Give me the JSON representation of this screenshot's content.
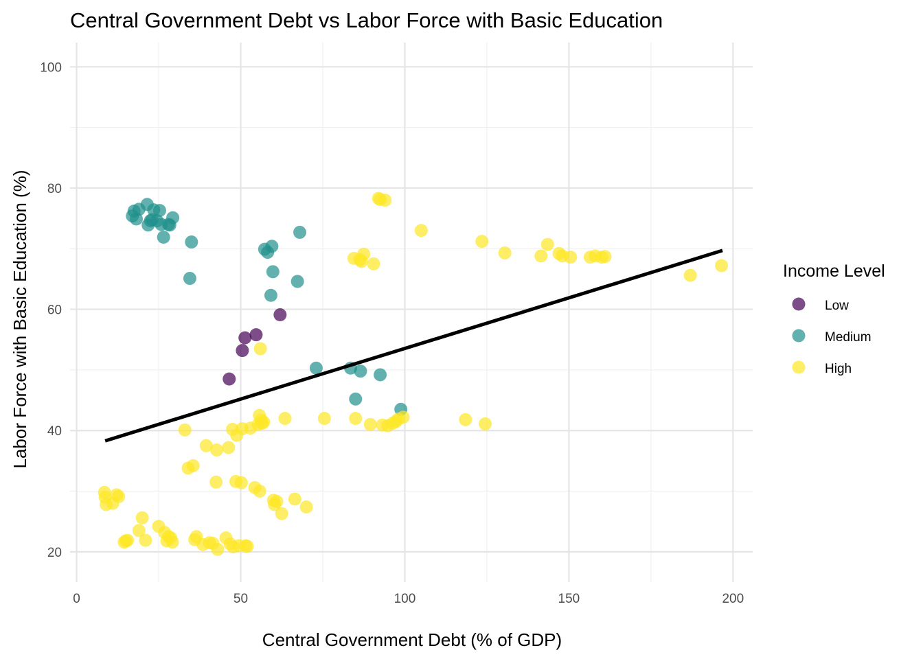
{
  "chart_data": {
    "type": "scatter",
    "title": "Central Government Debt vs Labor Force with Basic Education",
    "xlabel": "Central Government Debt (% of GDP)",
    "ylabel": "Labor Force with Basic Education (%)",
    "xlim": [
      -2,
      206
    ],
    "ylim": [
      15,
      104
    ],
    "x_ticks": [
      "0",
      "50",
      "100",
      "150",
      "200"
    ],
    "y_ticks": [
      "20",
      "40",
      "60",
      "80",
      "100"
    ],
    "grid": true,
    "legend": {
      "title": "Income Level",
      "position": "right",
      "entries": [
        {
          "label": "Low",
          "color": "#440154"
        },
        {
          "label": "Medium",
          "color": "#21908C"
        },
        {
          "label": "High",
          "color": "#FDE725"
        }
      ]
    },
    "series": [
      {
        "name": "Low",
        "color": "#440154",
        "points": [
          [
            46.5,
            48.5
          ],
          [
            50.5,
            53.2
          ],
          [
            51.3,
            55.3
          ],
          [
            54.7,
            55.8
          ],
          [
            62.0,
            59.1
          ]
        ]
      },
      {
        "name": "Medium",
        "color": "#21908C",
        "points": [
          [
            17.0,
            75.4
          ],
          [
            17.5,
            76.2
          ],
          [
            18.2,
            74.9
          ],
          [
            19.0,
            76.5
          ],
          [
            21.5,
            77.3
          ],
          [
            21.8,
            73.9
          ],
          [
            22.5,
            74.6
          ],
          [
            23.0,
            74.8
          ],
          [
            23.5,
            76.4
          ],
          [
            24.5,
            74.6
          ],
          [
            25.3,
            76.3
          ],
          [
            25.8,
            74.0
          ],
          [
            26.5,
            71.9
          ],
          [
            28.0,
            74.0
          ],
          [
            28.4,
            73.9
          ],
          [
            29.3,
            75.1
          ],
          [
            34.5,
            65.1
          ],
          [
            35.0,
            71.1
          ],
          [
            57.3,
            69.9
          ],
          [
            58.2,
            69.4
          ],
          [
            59.2,
            62.3
          ],
          [
            59.5,
            70.4
          ],
          [
            59.8,
            66.2
          ],
          [
            67.3,
            64.6
          ],
          [
            68.0,
            72.7
          ],
          [
            73.0,
            50.3
          ],
          [
            83.5,
            50.3
          ],
          [
            85.0,
            45.2
          ],
          [
            86.5,
            49.8
          ],
          [
            92.5,
            49.2
          ],
          [
            98.8,
            43.5
          ]
        ]
      },
      {
        "name": "High",
        "color": "#FDE725",
        "points": [
          [
            8.5,
            29.8
          ],
          [
            8.7,
            29.0
          ],
          [
            9.0,
            27.8
          ],
          [
            11.0,
            28.0
          ],
          [
            12.2,
            29.4
          ],
          [
            12.8,
            29.1
          ],
          [
            14.5,
            21.6
          ],
          [
            15.0,
            21.8
          ],
          [
            15.5,
            21.9
          ],
          [
            19.0,
            23.5
          ],
          [
            20.0,
            25.6
          ],
          [
            21.0,
            21.9
          ],
          [
            25.0,
            24.2
          ],
          [
            26.8,
            23.2
          ],
          [
            27.5,
            21.8
          ],
          [
            28.0,
            22.5
          ],
          [
            28.7,
            22.3
          ],
          [
            29.2,
            21.6
          ],
          [
            33.0,
            40.1
          ],
          [
            34.0,
            33.8
          ],
          [
            35.5,
            34.2
          ],
          [
            36.0,
            22.0
          ],
          [
            36.5,
            22.5
          ],
          [
            38.5,
            21.2
          ],
          [
            39.5,
            37.5
          ],
          [
            40.5,
            21.5
          ],
          [
            41.5,
            21.4
          ],
          [
            42.5,
            31.5
          ],
          [
            42.7,
            36.8
          ],
          [
            43.0,
            20.4
          ],
          [
            45.5,
            22.3
          ],
          [
            46.3,
            37.2
          ],
          [
            46.8,
            21.3
          ],
          [
            47.5,
            40.2
          ],
          [
            47.7,
            20.8
          ],
          [
            48.5,
            31.6
          ],
          [
            48.8,
            39.2
          ],
          [
            49.5,
            21.0
          ],
          [
            50.2,
            31.4
          ],
          [
            50.5,
            40.3
          ],
          [
            51.5,
            21.0
          ],
          [
            52.0,
            20.9
          ],
          [
            53.0,
            40.4
          ],
          [
            54.3,
            30.6
          ],
          [
            55.3,
            41.0
          ],
          [
            55.7,
            42.5
          ],
          [
            55.8,
            30.0
          ],
          [
            56.0,
            53.5
          ],
          [
            56.2,
            41.7
          ],
          [
            56.5,
            41.2
          ],
          [
            57.0,
            41.4
          ],
          [
            60.0,
            28.5
          ],
          [
            60.3,
            27.8
          ],
          [
            61.0,
            28.3
          ],
          [
            62.5,
            26.3
          ],
          [
            63.5,
            42.0
          ],
          [
            66.5,
            28.7
          ],
          [
            70.0,
            27.4
          ],
          [
            75.5,
            42.0
          ],
          [
            84.5,
            68.4
          ],
          [
            85.0,
            42.0
          ],
          [
            86.3,
            68.2
          ],
          [
            86.8,
            67.9
          ],
          [
            87.5,
            69.1
          ],
          [
            89.5,
            41.0
          ],
          [
            90.5,
            67.5
          ],
          [
            92.0,
            78.3
          ],
          [
            92.5,
            78.1
          ],
          [
            93.2,
            40.9
          ],
          [
            94.0,
            78.0
          ],
          [
            94.8,
            40.8
          ],
          [
            96.3,
            41.2
          ],
          [
            97.3,
            41.5
          ],
          [
            98.0,
            41.9
          ],
          [
            99.5,
            42.2
          ],
          [
            105.0,
            73.0
          ],
          [
            118.5,
            41.8
          ],
          [
            123.5,
            71.2
          ],
          [
            124.5,
            41.1
          ],
          [
            130.5,
            69.3
          ],
          [
            141.5,
            68.8
          ],
          [
            143.5,
            70.7
          ],
          [
            147.0,
            69.2
          ],
          [
            148.0,
            68.8
          ],
          [
            150.5,
            68.6
          ],
          [
            156.5,
            68.6
          ],
          [
            158.0,
            68.8
          ],
          [
            160.0,
            68.6
          ],
          [
            161.0,
            68.7
          ],
          [
            187.0,
            65.6
          ],
          [
            196.5,
            67.2
          ]
        ]
      }
    ],
    "trend_line": {
      "color": "#000000",
      "points": [
        [
          8.7,
          38.3
        ],
        [
          196.8,
          69.7
        ]
      ]
    }
  }
}
